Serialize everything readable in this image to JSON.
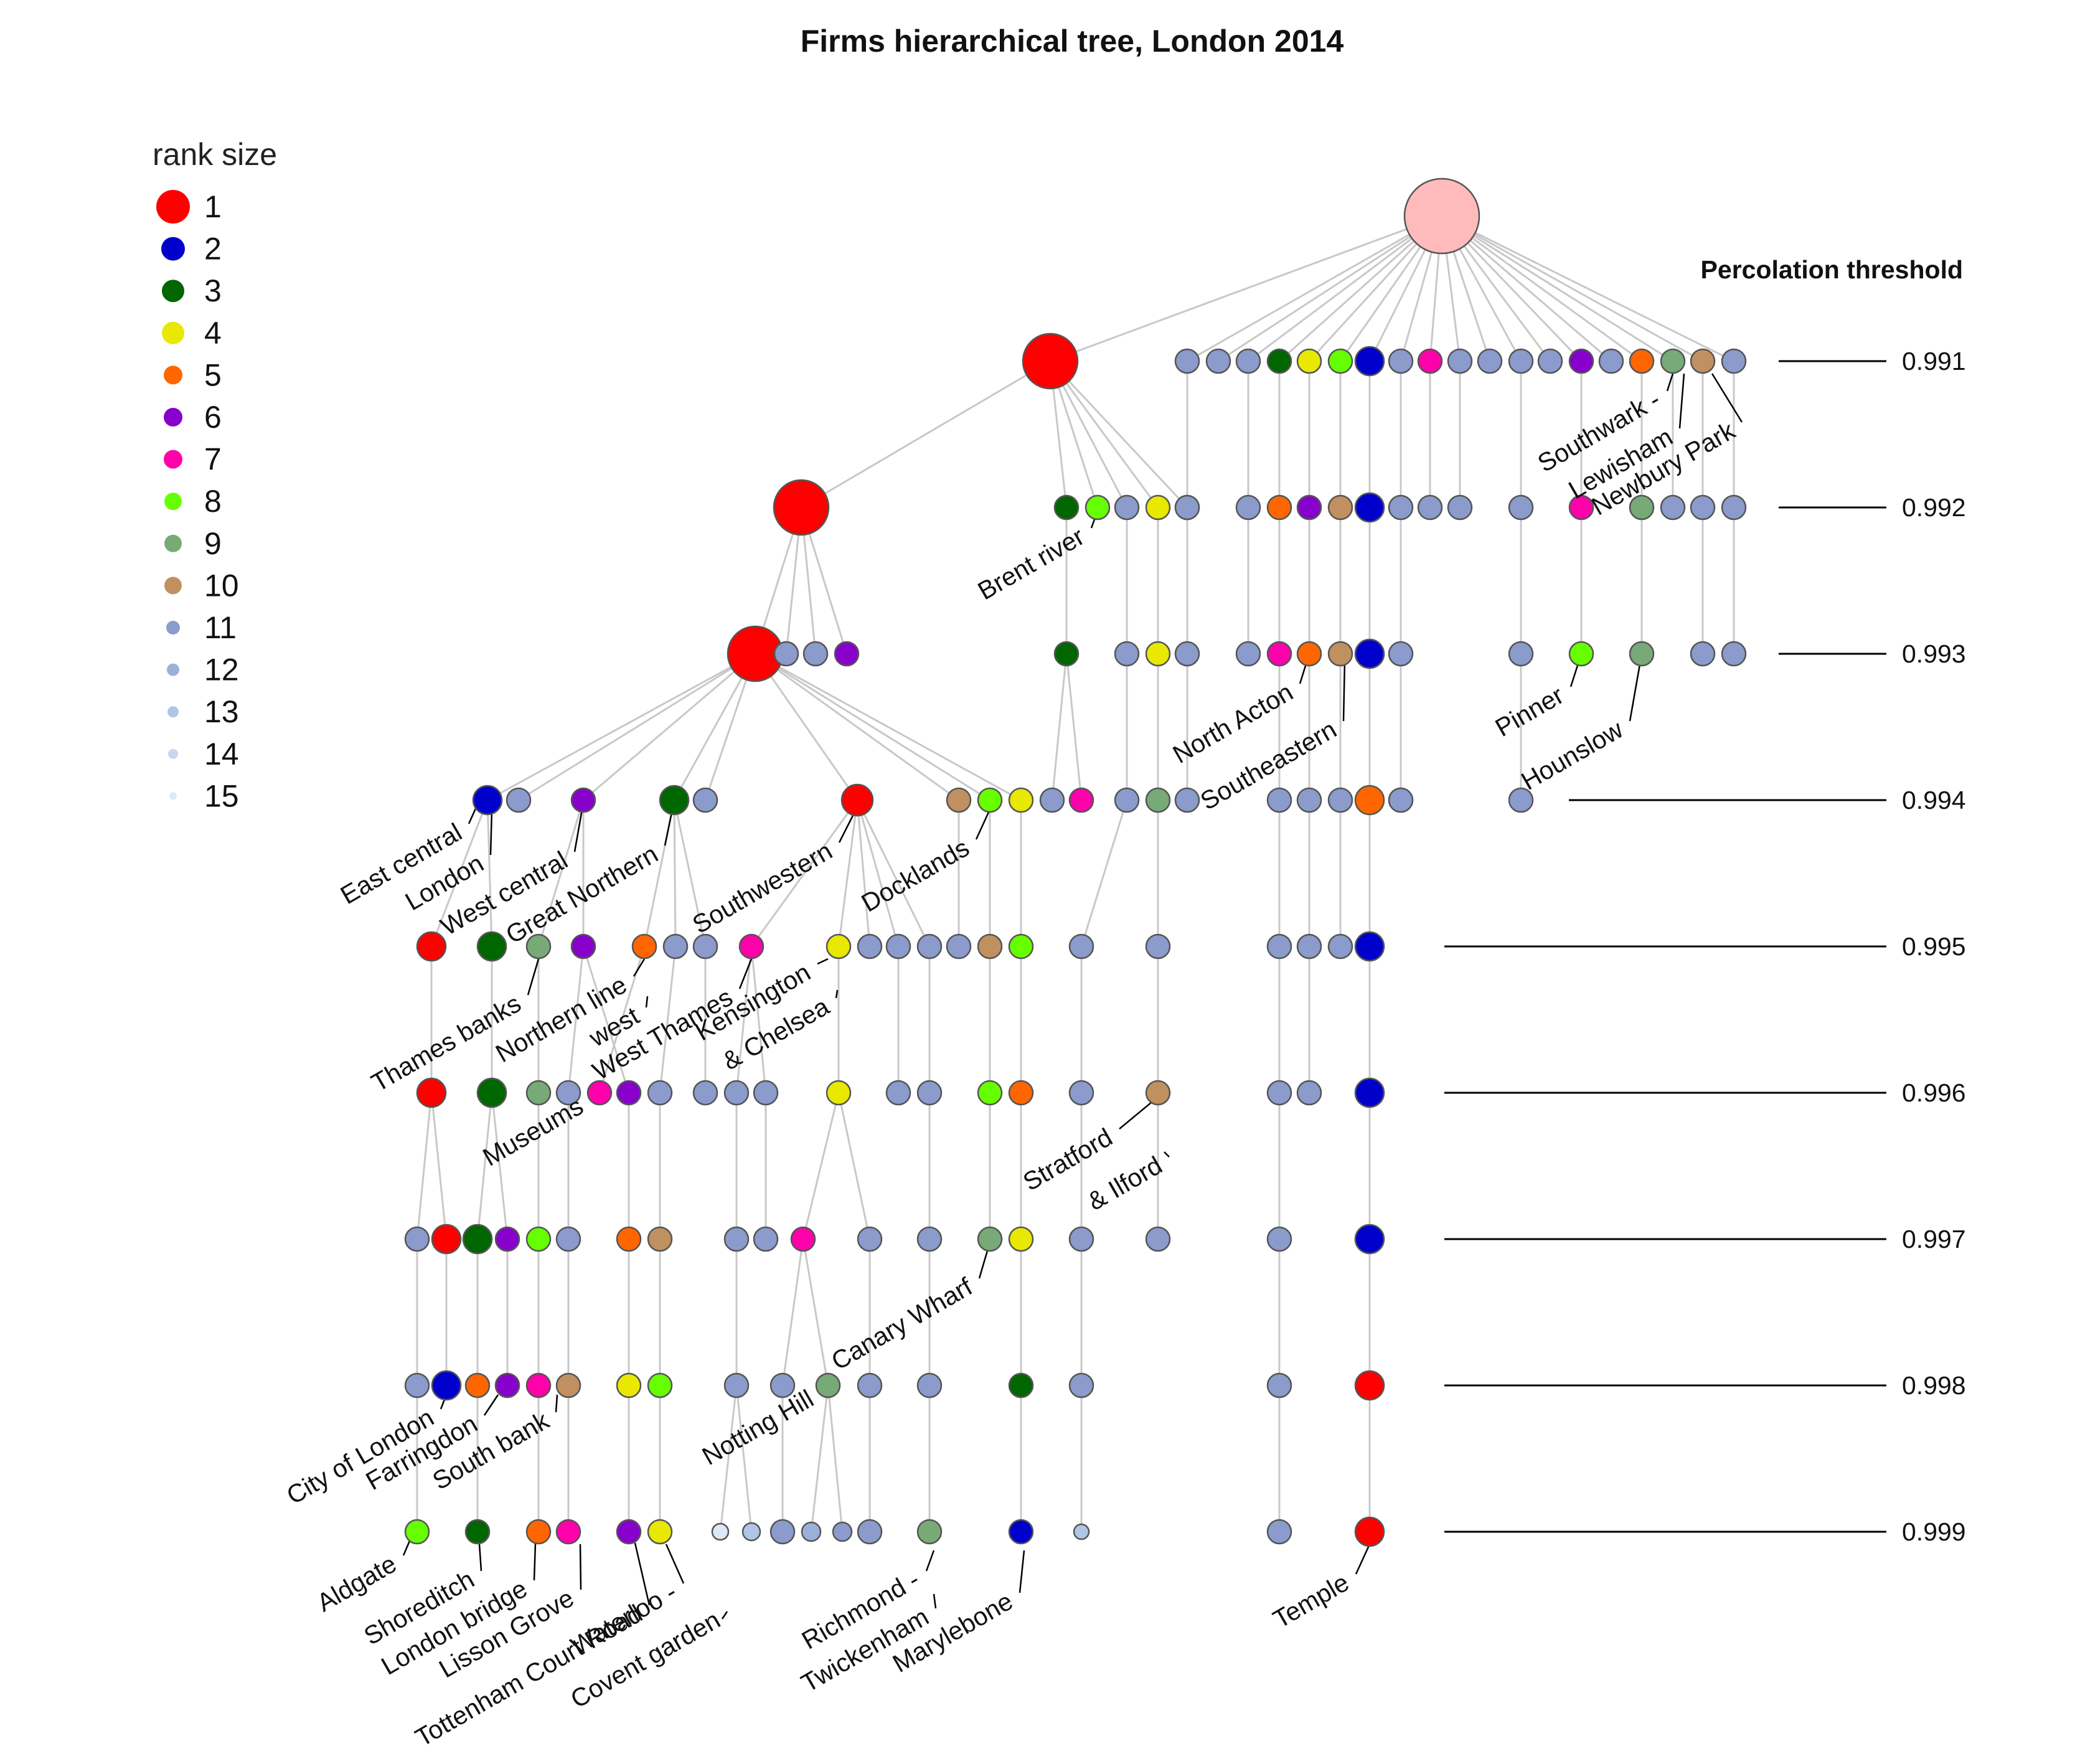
{
  "title": "Firms hierarchical tree, London 2014",
  "legend": {
    "title": "rank size",
    "items": [
      {
        "label": "1",
        "color": "#ff0000"
      },
      {
        "label": "2",
        "color": "#0000cc"
      },
      {
        "label": "3",
        "color": "#006600"
      },
      {
        "label": "4",
        "color": "#e8e800"
      },
      {
        "label": "5",
        "color": "#ff6600"
      },
      {
        "label": "6",
        "color": "#8800cc"
      },
      {
        "label": "7",
        "color": "#ff00aa"
      },
      {
        "label": "8",
        "color": "#66ff00"
      },
      {
        "label": "9",
        "color": "#77aa77"
      },
      {
        "label": "10",
        "color": "#c09060"
      },
      {
        "label": "11",
        "color": "#8a9bcc"
      },
      {
        "label": "12",
        "color": "#9bb0d8"
      },
      {
        "label": "13",
        "color": "#b0c6e6"
      },
      {
        "label": "14",
        "color": "#c6d8ee"
      },
      {
        "label": "15",
        "color": "#dce9f6"
      }
    ]
  },
  "thresholds": {
    "header": "Percolation threshold",
    "values": [
      "0.991",
      "0.992",
      "0.993",
      "0.994",
      "0.995",
      "0.996",
      "0.997",
      "0.998",
      "0.999"
    ]
  },
  "labels": {
    "brent_river": "Brent river",
    "southwark": "Southwark -",
    "lewisham": "Lewisham",
    "newbury_park": "Newbury Park",
    "north_acton": "North Acton",
    "southeastern": "Southeastern",
    "pinner": "Pinner",
    "hounslow": "Hounslow",
    "east_central": "East central",
    "london": "London",
    "west_central": "West central",
    "great_northern": "Great Northern",
    "southwestern": "Southwestern",
    "docklands": "Docklands",
    "thames_banks": "Thames banks",
    "northern_line": "Northern line",
    "west": "west",
    "west_thames": "West Thames",
    "kensington": "Kensington",
    "chelsea": "& Chelsea",
    "museums": "Museums",
    "stratford": "Stratford",
    "ilford": "& Ilford",
    "canary_wharf": "Canary Wharf",
    "city_of_london": "City of London",
    "farringdon": "Farringdon",
    "south_bank": "South bank",
    "notting_hill": "Notting Hill",
    "aldgate": "Aldgate",
    "shoreditch": "Shoreditch",
    "london_bridge": "London bridge",
    "lisson_grove": "Lisson Grove",
    "tottenham": "Tottenham Court Road",
    "waterloo": "Waterloo -",
    "covent_garden": "Covent garden",
    "richmond": "Richmond -",
    "twickenham": "Twickenham",
    "marylebone": "Marylebone",
    "temple": "Temple"
  }
}
